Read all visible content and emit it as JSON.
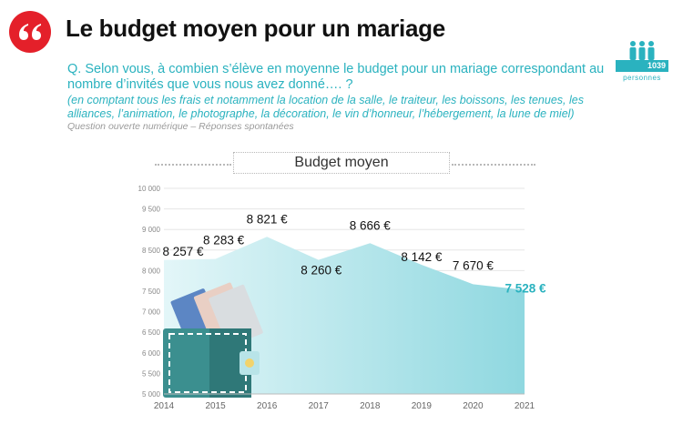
{
  "header": {
    "title": "Le budget moyen pour un mariage"
  },
  "respondents": {
    "count": "1039",
    "label": "personnes"
  },
  "question": {
    "text": "Q. Selon vous, à combien s’élève en moyenne le budget pour un mariage correspondant au nombre d’invités que vous nous avez donné…. ?",
    "precision": "(en comptant tous les frais et notamment la location de la salle, le traiteur, les boissons, les tenues, les alliances, l’animation, le photographe, la décoration, le vin d’honneur, l’hébergement, la lune de miel)",
    "method": "Question ouverte numérique – Réponses spontanées"
  },
  "colors": {
    "accent": "#2ab2bf",
    "brand_red": "#e4202a",
    "area_light": "#d9f3f6",
    "area_dark": "#8fd8e0",
    "wallet": "#3b8f8f"
  },
  "chart_data": {
    "type": "area",
    "title": "Budget moyen",
    "x": [
      2014,
      2015,
      2016,
      2017,
      2018,
      2019,
      2020,
      2021
    ],
    "series": [
      {
        "values": [
          8257,
          8283,
          8821,
          8260,
          8666,
          8142,
          7670,
          7528
        ],
        "labels": [
          "8 257 €",
          "8 283 €",
          "8 821 €",
          "8 260 €",
          "8 666 €",
          "8 142 €",
          "7 670 €",
          "7 528 €"
        ]
      }
    ],
    "ylim": [
      5000,
      10000
    ],
    "yticks": [
      5000,
      5500,
      6000,
      6500,
      7000,
      7500,
      8000,
      8500,
      9000,
      9500,
      10000
    ],
    "ytick_labels": [
      "5 000",
      "5 500",
      "6 000",
      "6 500",
      "7 000",
      "7 500",
      "8 000",
      "8 500",
      "9 000",
      "9 500",
      "10 000"
    ],
    "xlabel": "",
    "ylabel": "",
    "grid": true,
    "highlight_last": true
  }
}
